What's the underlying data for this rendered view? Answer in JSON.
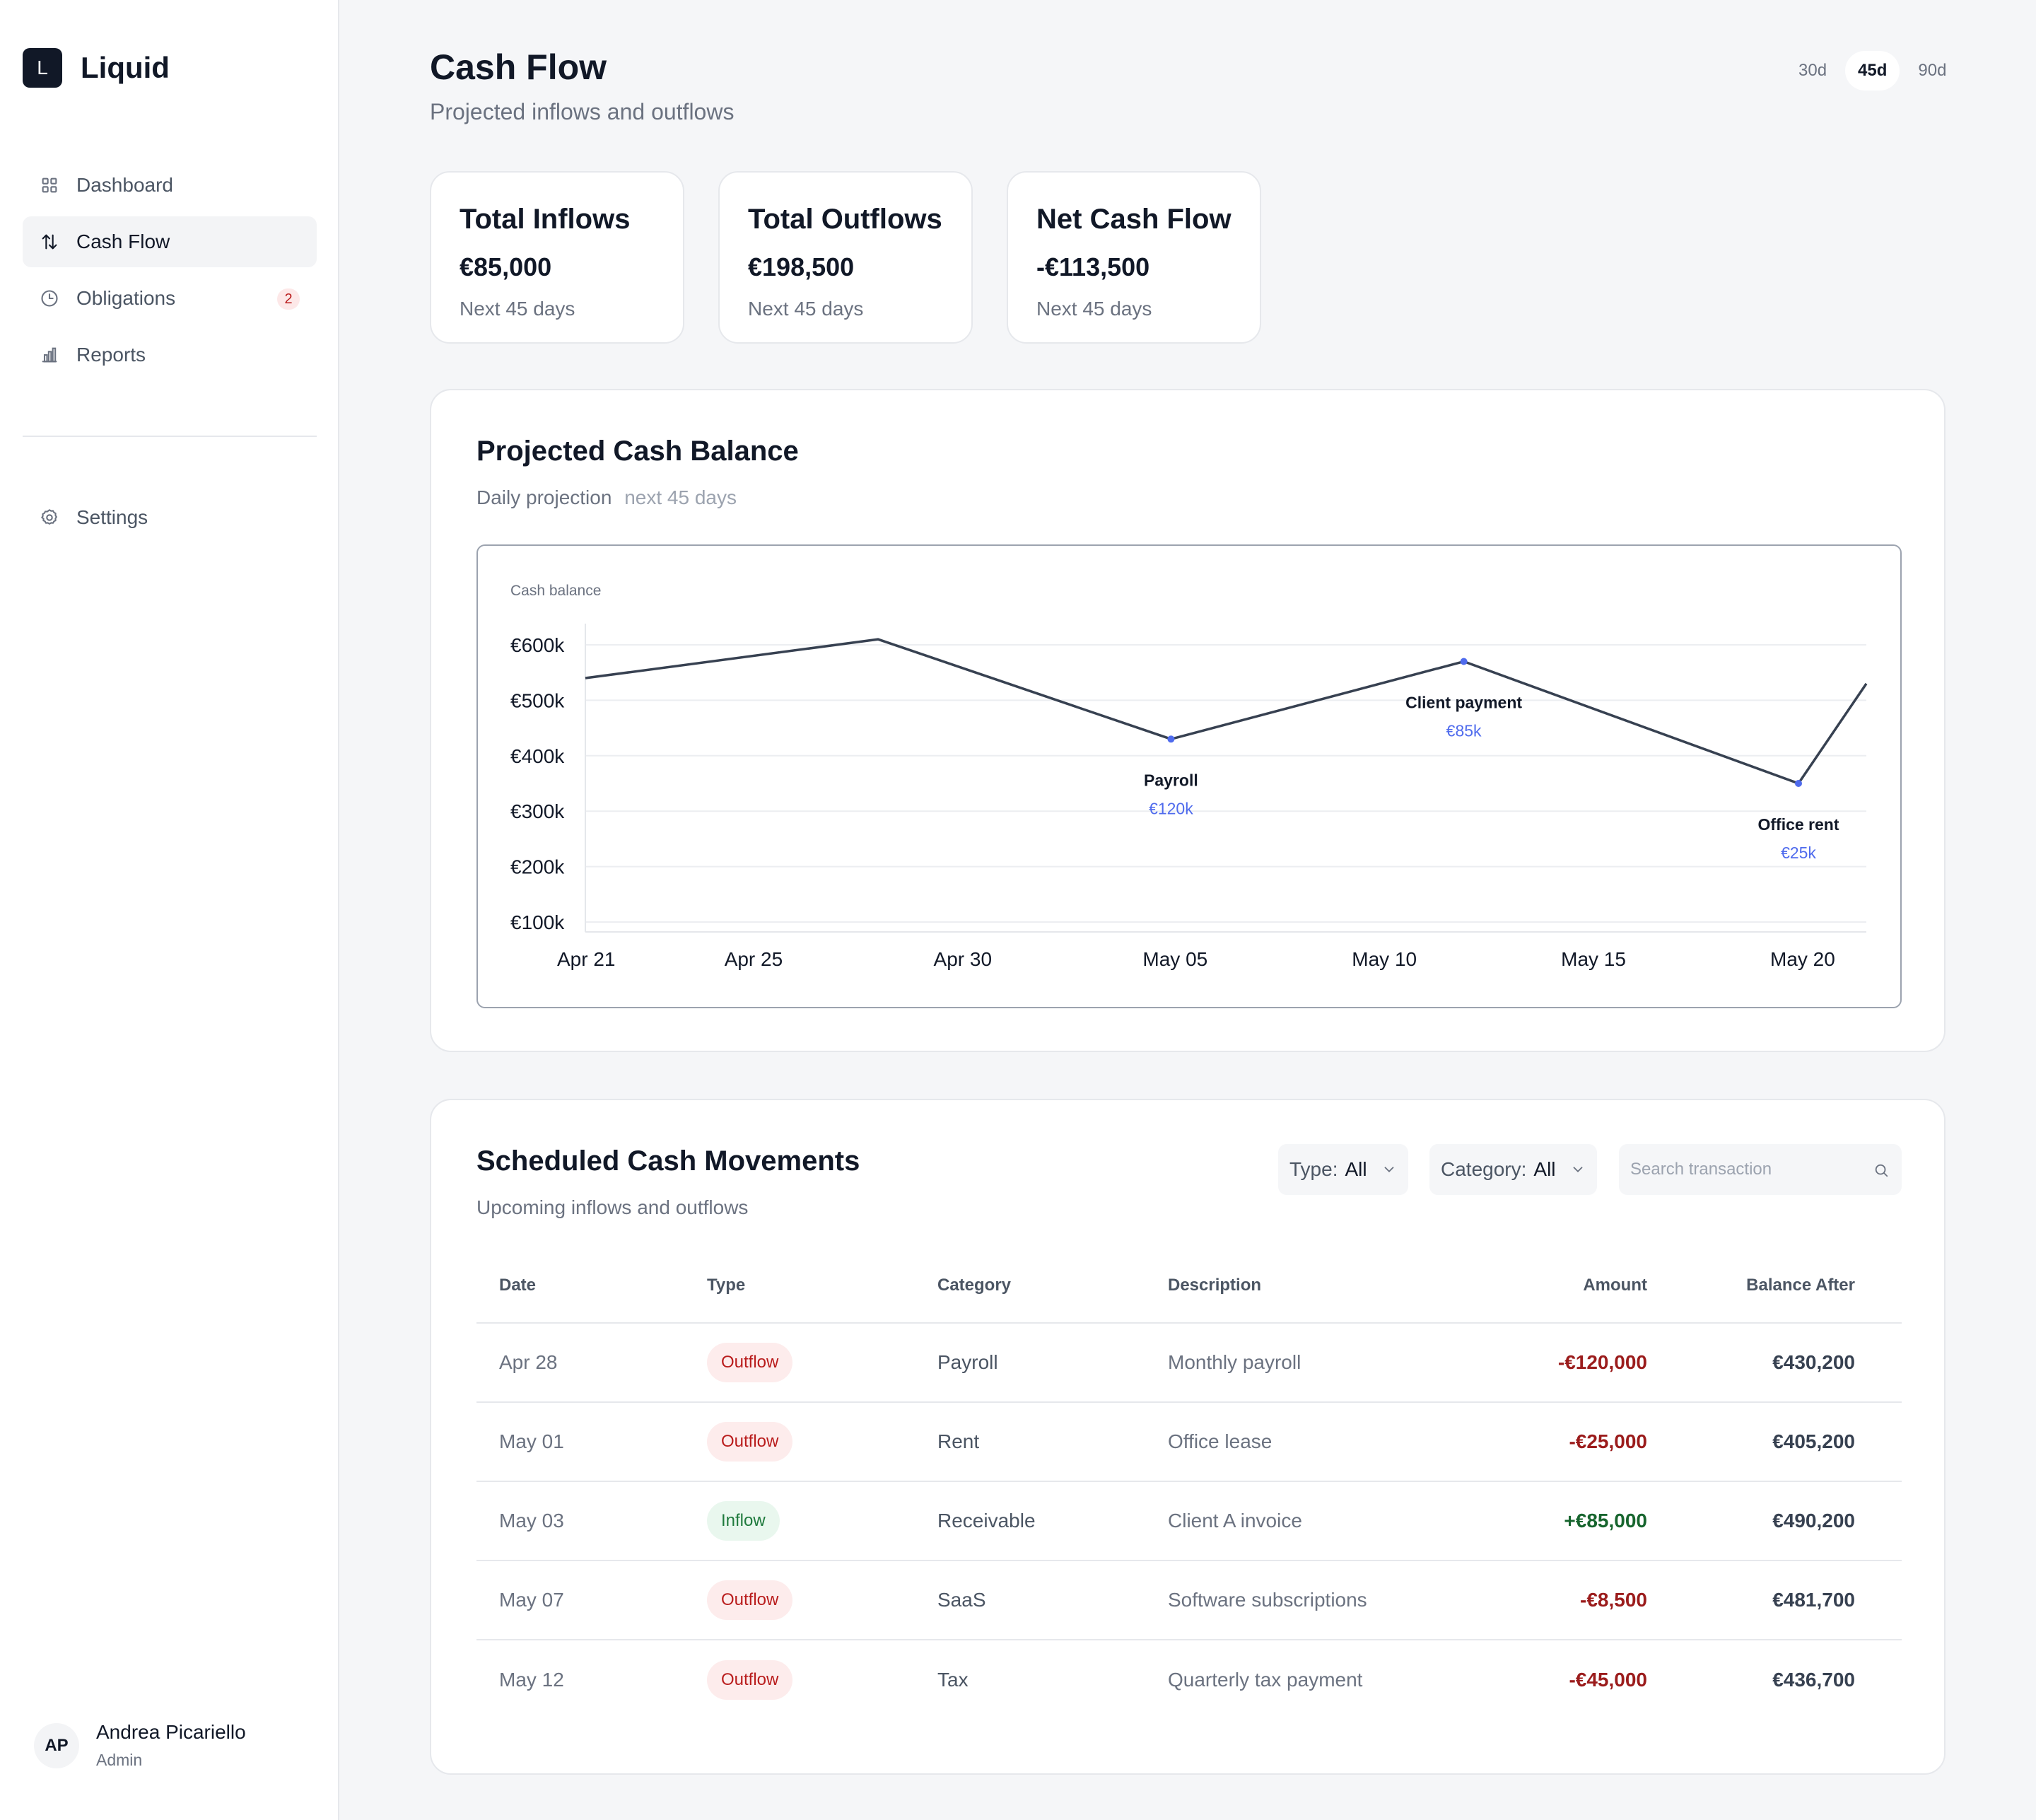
{
  "app": {
    "logo_letter": "L",
    "name": "Liquid"
  },
  "sidebar": {
    "items": [
      {
        "label": "Dashboard",
        "icon": "grid-icon",
        "active": false
      },
      {
        "label": "Cash Flow",
        "icon": "arrows-up-down-icon",
        "active": true
      },
      {
        "label": "Obligations",
        "icon": "clock-icon",
        "active": false,
        "badge": "2"
      },
      {
        "label": "Reports",
        "icon": "bar-chart-icon",
        "active": false
      }
    ],
    "settings": {
      "label": "Settings",
      "icon": "gear-icon"
    }
  },
  "user": {
    "initials": "AP",
    "name": "Andrea Picariello",
    "role": "Admin"
  },
  "header": {
    "title": "Cash Flow",
    "subtitle": "Projected inflows and outflows",
    "ranges": [
      "30d",
      "45d",
      "90d"
    ],
    "active_range": "45d"
  },
  "stats": [
    {
      "title": "Total Inflows",
      "value": "€85,000",
      "note": "Next 45 days"
    },
    {
      "title": "Total Outflows",
      "value": "€198,500",
      "note": "Next 45 days"
    },
    {
      "title": "Net Cash Flow",
      "value": "-€113,500",
      "note": "Next 45 days"
    }
  ],
  "projection": {
    "title": "Projected Cash Balance",
    "subtitle": "Daily projection",
    "subtitle_muted": "next 45 days"
  },
  "chart_data": {
    "type": "line",
    "title": "",
    "ylabel": "Cash balance",
    "xlabel": "",
    "x_ticks": [
      "Apr 21",
      "Apr 25",
      "Apr 30",
      "May 05",
      "May 10",
      "May 15",
      "May 20"
    ],
    "y_ticks": [
      "€600k",
      "€500k",
      "€400k",
      "€300k",
      "€200k",
      "€100k"
    ],
    "ylim": [
      100000,
      600000
    ],
    "grid": true,
    "series": [
      {
        "x": [
          "Apr 21",
          "Apr 28",
          "May 05",
          "May 12",
          "May 20"
        ],
        "values": [
          540000,
          610000,
          430000,
          570000,
          350000
        ]
      }
    ],
    "series_tail": {
      "x": "May 25",
      "value": 530000
    },
    "annotations": [
      {
        "label": "Payroll",
        "amount": "€120k",
        "x": "May 05",
        "y": 430000
      },
      {
        "label": "Client payment",
        "amount": "€85k",
        "x": "May 12",
        "y": 570000
      },
      {
        "label": "Office rent",
        "amount": "€25k",
        "x": "May 20",
        "y": 350000
      }
    ],
    "line_color": "#374151",
    "marker_color": "#4f6bed"
  },
  "movements": {
    "title": "Scheduled Cash Movements",
    "subtitle": "Upcoming inflows and outflows",
    "filters": {
      "type_label": "Type:",
      "type_value": "All",
      "category_label": "Category:",
      "category_value": "All",
      "search_placeholder": "Search transaction"
    },
    "columns": [
      "Date",
      "Type",
      "Category",
      "Description",
      "Amount",
      "Balance After"
    ],
    "rows": [
      {
        "date": "Apr 28",
        "type": "Outflow",
        "category": "Payroll",
        "description": "Monthly payroll",
        "amount": "-€120,000",
        "balance": "€430,200"
      },
      {
        "date": "May 01",
        "type": "Outflow",
        "category": "Rent",
        "description": "Office lease",
        "amount": "-€25,000",
        "balance": "€405,200"
      },
      {
        "date": "May 03",
        "type": "Inflow",
        "category": "Receivable",
        "description": "Client A invoice",
        "amount": "+€85,000",
        "balance": "€490,200"
      },
      {
        "date": "May 07",
        "type": "Outflow",
        "category": "SaaS",
        "description": "Software subscriptions",
        "amount": "-€8,500",
        "balance": "€481,700"
      },
      {
        "date": "May 12",
        "type": "Outflow",
        "category": "Tax",
        "description": "Quarterly tax payment",
        "amount": "-€45,000",
        "balance": "€436,700"
      }
    ]
  }
}
